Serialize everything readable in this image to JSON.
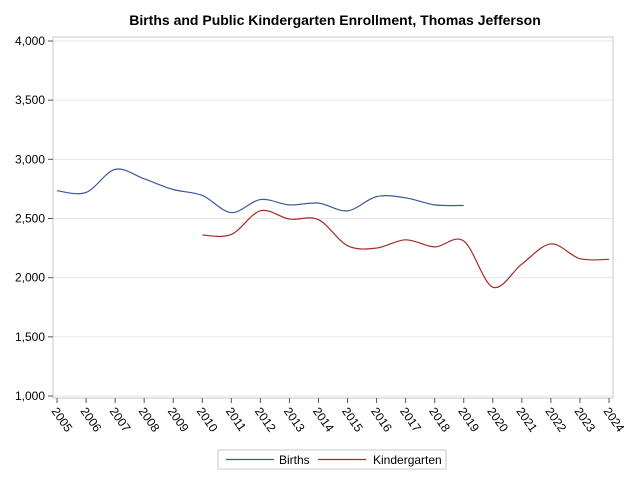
{
  "chart_data": {
    "type": "line",
    "title": "Births and Public Kindergarten Enrollment, Thomas Jefferson",
    "xlabel": "",
    "ylabel": "",
    "x": [
      "2005",
      "2006",
      "2007",
      "2008",
      "2009",
      "2010",
      "2011",
      "2012",
      "2013",
      "2014",
      "2015",
      "2016",
      "2017",
      "2018",
      "2019",
      "2020",
      "2021",
      "2022",
      "2023",
      "2024"
    ],
    "ylim": [
      1000,
      4000
    ],
    "yticks": [
      1000,
      1500,
      2000,
      2500,
      3000,
      3500,
      4000
    ],
    "ytick_labels": [
      "1,000",
      "1,500",
      "2,000",
      "2,500",
      "3,000",
      "3,500",
      "4,000"
    ],
    "grid": true,
    "legend_position": "bottom-center",
    "series": [
      {
        "name": "Births",
        "color": "#3b5998",
        "values": [
          2735,
          2720,
          2915,
          2835,
          2745,
          2695,
          2550,
          2660,
          2615,
          2630,
          2565,
          2685,
          2675,
          2615,
          2610,
          null,
          null,
          null,
          null,
          null
        ]
      },
      {
        "name": "Kindergarten",
        "color": "#a52a2a",
        "values": [
          null,
          null,
          null,
          null,
          null,
          2360,
          2365,
          2565,
          2495,
          2490,
          2270,
          2250,
          2320,
          2260,
          2310,
          1920,
          2115,
          2285,
          2160,
          2155
        ]
      }
    ]
  }
}
